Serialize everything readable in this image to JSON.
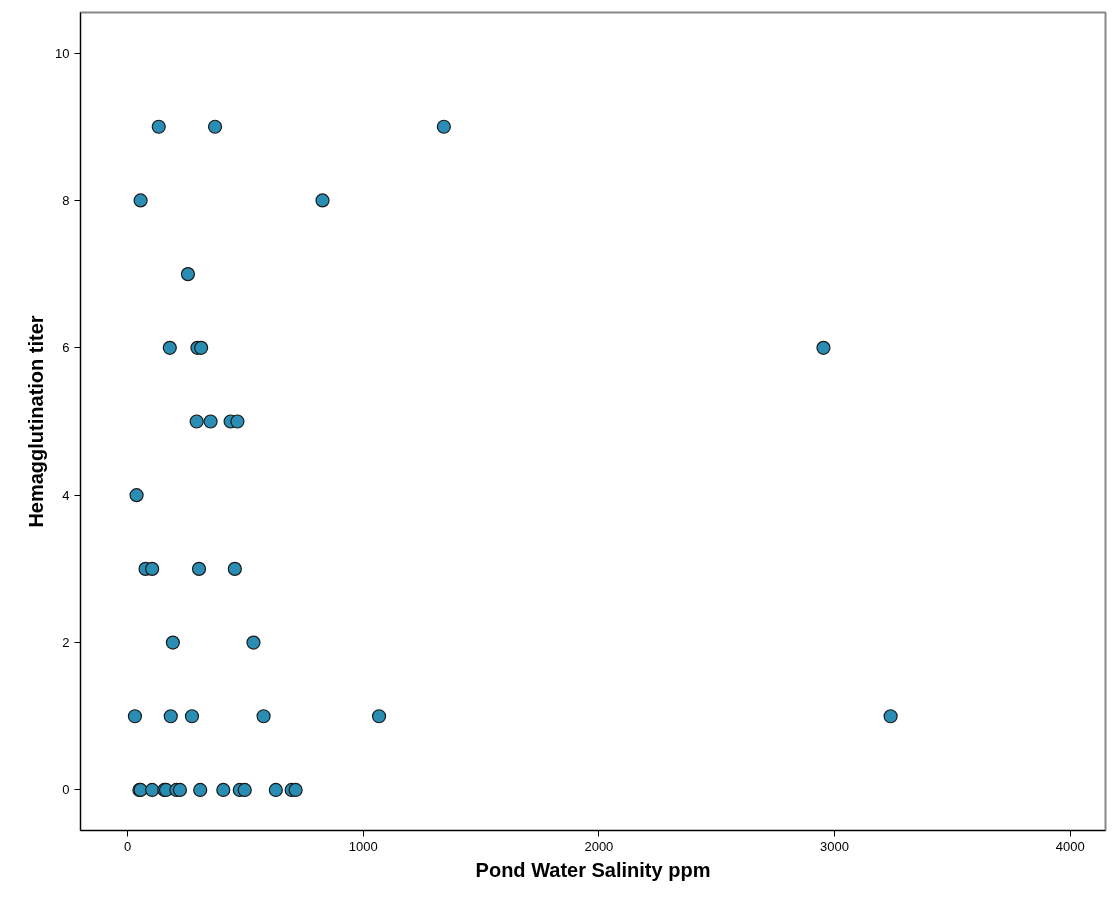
{
  "chart_data": {
    "type": "scatter",
    "xlabel": "Pond Water Salinity ppm",
    "ylabel": "Hemagglutination titer",
    "xlim": [
      -200,
      4150
    ],
    "ylim": [
      -0.55,
      10.55
    ],
    "xticks": [
      0,
      1000,
      2000,
      3000,
      4000
    ],
    "yticks": [
      0,
      2,
      4,
      6,
      8,
      10
    ],
    "grid": false,
    "marker": "circle",
    "series": [
      {
        "color": "#2a8db3",
        "x": [
          132,
          371,
          1342,
          55,
          827,
          256,
          179,
          296,
          312,
          2953,
          293,
          352,
          437,
          466,
          38,
          76,
          104,
          303,
          455,
          192,
          534,
          31,
          183,
          273,
          577,
          1067,
          3238,
          50,
          55,
          104,
          156,
          163,
          207,
          222,
          308,
          406,
          476,
          497,
          629,
          696,
          713
        ],
        "values": [
          9,
          9,
          9,
          8,
          8,
          7,
          6,
          6,
          6,
          6,
          5,
          5,
          5,
          5,
          4,
          3,
          3,
          3,
          3,
          2,
          2,
          1,
          1,
          1,
          1,
          1,
          1,
          0,
          0,
          0,
          0,
          0,
          0,
          0,
          0,
          0,
          0,
          0,
          0,
          0,
          0
        ]
      }
    ]
  }
}
